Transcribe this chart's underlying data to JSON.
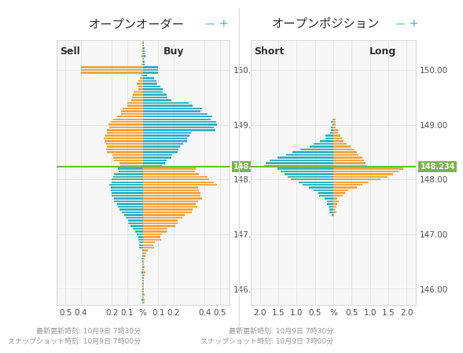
{
  "title_left": "オープンオーダー",
  "title_right": "オープンポジション",
  "label_sell": "Sell",
  "label_buy": "Buy",
  "label_short": "Short",
  "label_long": "Long",
  "current_price": 148.234,
  "current_price_label": "148.234",
  "price_line_color": "#7ab648",
  "orange_color": "#f5a742",
  "blue_color": "#3ab5c6",
  "bg_color": "#ffffff",
  "panel_bg": "#f7f7f7",
  "grid_color": "#e0e0e0",
  "text_color": "#555555",
  "footer_text_left": "最新更新時刻: 10月9日 7時30分\nスナップショット時刻: 10月9日 7時00分",
  "footer_text_right": "最新更新時刻: 10月9日 7時30分\nスナップショット時刻: 10月9日 7時00分",
  "ytick_labels": [
    "146.00",
    "147.00",
    "148.00",
    "149.00",
    "150.00"
  ],
  "ytick_prices": [
    146.0,
    147.0,
    148.0,
    149.0,
    150.0
  ],
  "price_min": 145.7,
  "price_max": 150.55,
  "title_fontsize": 11,
  "label_fontsize": 9,
  "tick_fontsize": 7.5,
  "footer_fontsize": 6.5
}
